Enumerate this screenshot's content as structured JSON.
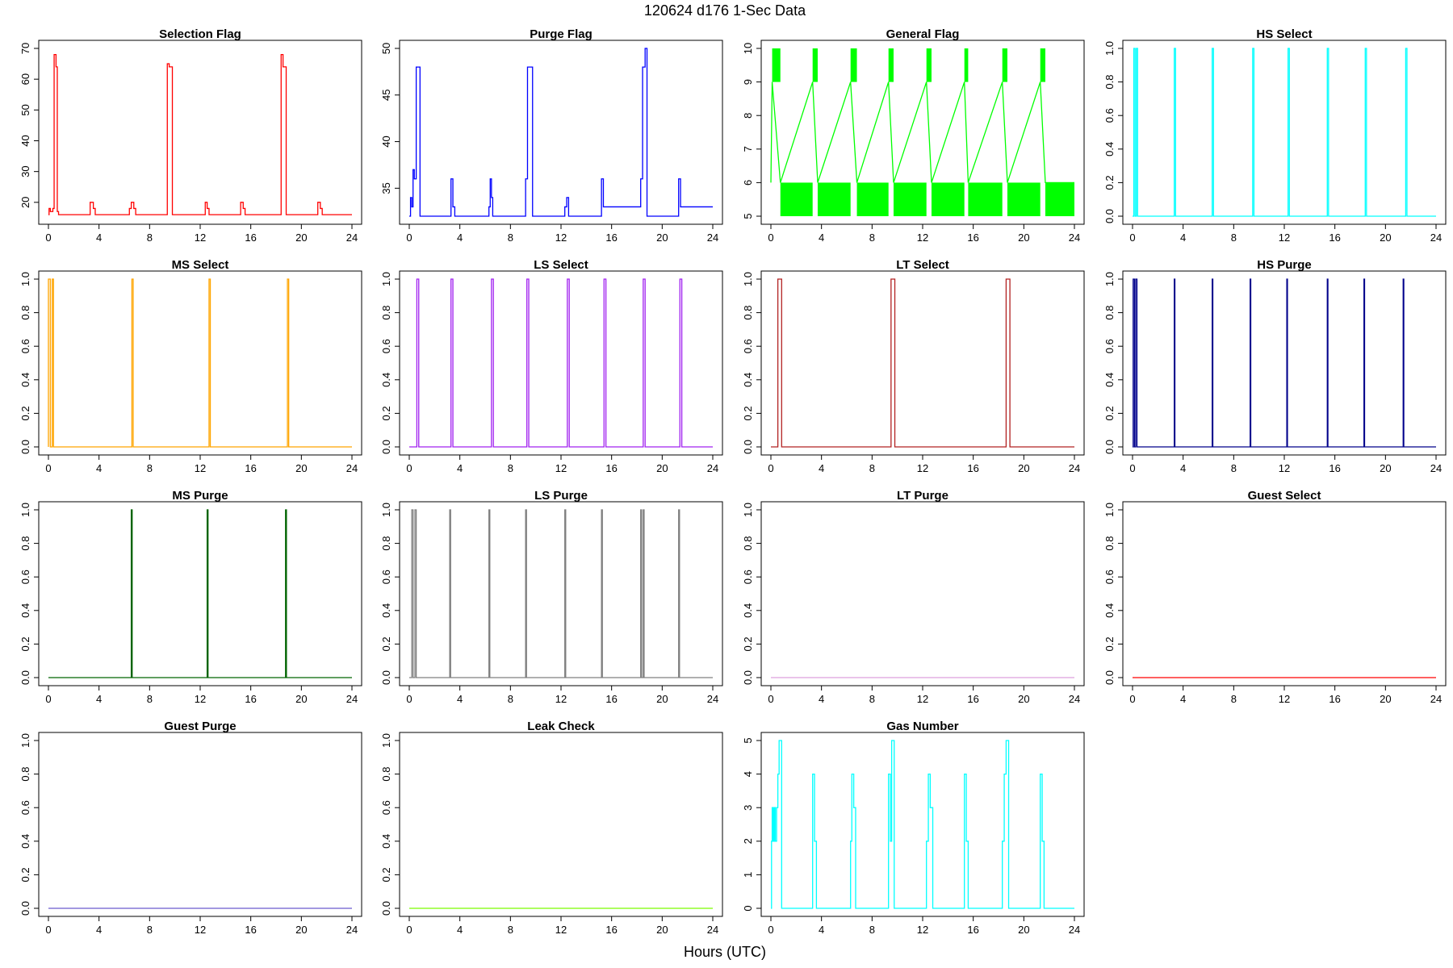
{
  "figure": {
    "title": "120624   d176   1-Sec Data",
    "xlabel": "Hours (UTC)"
  },
  "chart_data": [
    {
      "type": "line",
      "step": true,
      "title": "Selection Flag",
      "color": "#ff0000",
      "xlim": [
        0,
        24
      ],
      "ylim": [
        15.5,
        70
      ],
      "xticks": [
        0,
        4,
        8,
        12,
        16,
        20,
        24
      ],
      "yticks": [
        20,
        30,
        40,
        50,
        60,
        70
      ],
      "x": [
        0,
        0.05,
        0.05,
        0.15,
        0.15,
        0.35,
        0.35,
        0.45,
        0.45,
        0.6,
        0.6,
        0.7,
        0.7,
        0.8,
        0.8,
        3.3,
        3.3,
        3.55,
        3.55,
        3.7,
        3.7,
        6.4,
        6.4,
        6.55,
        6.55,
        6.75,
        6.75,
        6.9,
        6.9,
        9.4,
        9.4,
        9.55,
        9.55,
        9.8,
        9.8,
        12.4,
        12.4,
        12.55,
        12.55,
        12.7,
        12.7,
        15.2,
        15.2,
        15.4,
        15.4,
        15.55,
        15.55,
        18.4,
        18.4,
        18.55,
        18.55,
        18.8,
        18.8,
        21.3,
        21.3,
        21.5,
        21.5,
        21.65,
        21.65,
        24
      ],
      "y": [
        16,
        16,
        18,
        18,
        17,
        17,
        18,
        18,
        68,
        68,
        64,
        64,
        17,
        17,
        16,
        16,
        20,
        20,
        18,
        18,
        16,
        16,
        18,
        18,
        20,
        20,
        18,
        18,
        16,
        16,
        65,
        65,
        64,
        64,
        16,
        16,
        20,
        20,
        18,
        18,
        16,
        16,
        20,
        20,
        18,
        18,
        16,
        16,
        68,
        68,
        64,
        64,
        16,
        16,
        20,
        20,
        18,
        18,
        16,
        16
      ]
    },
    {
      "type": "line",
      "step": true,
      "title": "Purge Flag",
      "color": "#0000ff",
      "xlim": [
        0,
        24
      ],
      "ylim": [
        32,
        50
      ],
      "xticks": [
        0,
        4,
        8,
        12,
        16,
        20,
        24
      ],
      "yticks": [
        35,
        40,
        45,
        50
      ],
      "x": [
        0,
        0.1,
        0.1,
        0.2,
        0.2,
        0.3,
        0.3,
        0.4,
        0.4,
        0.55,
        0.55,
        0.85,
        0.85,
        3.3,
        3.3,
        3.45,
        3.45,
        3.6,
        3.6,
        6.3,
        6.3,
        6.4,
        6.4,
        6.5,
        6.5,
        6.6,
        6.6,
        9.2,
        9.2,
        9.35,
        9.35,
        9.55,
        9.55,
        9.75,
        9.75,
        12.3,
        12.3,
        12.45,
        12.45,
        12.6,
        12.6,
        15.2,
        15.2,
        15.35,
        15.35,
        18.3,
        18.3,
        18.45,
        18.45,
        18.65,
        18.65,
        18.8,
        18.8,
        21.3,
        21.3,
        21.45,
        21.45,
        24
      ],
      "y": [
        32,
        32,
        34,
        34,
        33,
        33,
        37,
        37,
        36,
        36,
        48,
        48,
        32,
        32,
        36,
        36,
        33,
        33,
        32,
        32,
        33,
        33,
        36,
        36,
        34,
        34,
        32,
        32,
        36,
        36,
        48,
        48,
        48,
        48,
        32,
        32,
        33,
        33,
        34,
        34,
        32,
        32,
        36,
        36,
        33,
        33,
        36,
        36,
        48,
        48,
        50,
        50,
        32,
        32,
        36,
        36,
        33,
        33
      ]
    },
    {
      "type": "line",
      "step": true,
      "title": "General Flag",
      "color": "#00ff00",
      "xlim": [
        0,
        24
      ],
      "ylim": [
        5,
        10
      ],
      "xticks": [
        0,
        4,
        8,
        12,
        16,
        20,
        24
      ],
      "yticks": [
        5,
        6,
        7,
        8,
        9,
        10
      ],
      "x": [
        0,
        0,
        0.1,
        0.1,
        0.75,
        0.75,
        3.3,
        3.3,
        3.7,
        3.7,
        6.3,
        6.3,
        6.8,
        6.8,
        9.3,
        9.3,
        9.7,
        9.7,
        12.3,
        12.3,
        12.7,
        12.7,
        15.3,
        15.3,
        15.6,
        15.6,
        18.3,
        18.3,
        18.7,
        18.7,
        21.3,
        21.3,
        21.7,
        21.7,
        24
      ],
      "y": [
        6,
        6,
        9,
        9,
        6,
        6,
        9,
        9,
        6,
        6,
        9,
        9,
        6,
        6,
        9,
        9,
        6,
        6,
        9,
        9,
        6,
        6,
        9,
        9,
        6,
        6,
        9,
        9,
        6,
        6,
        9,
        9,
        6,
        6,
        6
      ],
      "filled_blocks": [
        {
          "x0": 0.1,
          "x1": 0.75,
          "y0": 9,
          "y1": 10
        },
        {
          "x0": 3.3,
          "x1": 3.7,
          "y0": 9,
          "y1": 10
        },
        {
          "x0": 6.3,
          "x1": 6.8,
          "y0": 9,
          "y1": 10
        },
        {
          "x0": 9.3,
          "x1": 9.7,
          "y0": 9,
          "y1": 10
        },
        {
          "x0": 12.3,
          "x1": 12.7,
          "y0": 9,
          "y1": 10
        },
        {
          "x0": 15.3,
          "x1": 15.6,
          "y0": 9,
          "y1": 10
        },
        {
          "x0": 18.3,
          "x1": 18.7,
          "y0": 9,
          "y1": 10
        },
        {
          "x0": 21.3,
          "x1": 21.7,
          "y0": 9,
          "y1": 10
        },
        {
          "x0": 0.75,
          "x1": 3.3,
          "y0": 5,
          "y1": 6
        },
        {
          "x0": 3.7,
          "x1": 6.3,
          "y0": 5,
          "y1": 6
        },
        {
          "x0": 6.8,
          "x1": 9.3,
          "y0": 5,
          "y1": 6
        },
        {
          "x0": 9.7,
          "x1": 12.3,
          "y0": 5,
          "y1": 6
        },
        {
          "x0": 12.7,
          "x1": 15.3,
          "y0": 5,
          "y1": 6
        },
        {
          "x0": 15.6,
          "x1": 18.3,
          "y0": 5,
          "y1": 6
        },
        {
          "x0": 18.7,
          "x1": 21.3,
          "y0": 5,
          "y1": 6
        },
        {
          "x0": 21.7,
          "x1": 24,
          "y0": 5,
          "y1": 6
        }
      ]
    },
    {
      "type": "line",
      "step": true,
      "title": "HS Select",
      "color": "#00ffff",
      "xlim": [
        0,
        24
      ],
      "ylim": [
        0,
        1
      ],
      "xticks": [
        0,
        4,
        8,
        12,
        16,
        20,
        24
      ],
      "yticks": [
        0.0,
        0.2,
        0.4,
        0.6,
        0.8,
        1.0
      ],
      "pulses": [
        [
          0.1,
          0.2
        ],
        [
          0.3,
          0.4
        ],
        [
          3.3,
          3.4
        ],
        [
          6.3,
          6.4
        ],
        [
          9.5,
          9.6
        ],
        [
          12.3,
          12.4
        ],
        [
          15.4,
          15.5
        ],
        [
          18.4,
          18.5
        ],
        [
          21.6,
          21.7
        ]
      ]
    },
    {
      "type": "line",
      "step": true,
      "title": "MS Select",
      "color": "#ffa500",
      "xlim": [
        0,
        24
      ],
      "ylim": [
        0,
        1
      ],
      "xticks": [
        0,
        4,
        8,
        12,
        16,
        20,
        24
      ],
      "yticks": [
        0.0,
        0.2,
        0.4,
        0.6,
        0.8,
        1.0
      ],
      "pulses": [
        [
          0,
          0.15
        ],
        [
          0.3,
          0.4
        ],
        [
          6.6,
          6.7
        ],
        [
          12.7,
          12.8
        ],
        [
          18.9,
          19.0
        ]
      ]
    },
    {
      "type": "line",
      "step": true,
      "title": "LS Select",
      "color": "#a020f0",
      "xlim": [
        0,
        24
      ],
      "ylim": [
        0,
        1
      ],
      "xticks": [
        0,
        4,
        8,
        12,
        16,
        20,
        24
      ],
      "yticks": [
        0.0,
        0.2,
        0.4,
        0.6,
        0.8,
        1.0
      ],
      "pulses": [
        [
          0.6,
          0.75
        ],
        [
          3.3,
          3.45
        ],
        [
          6.5,
          6.65
        ],
        [
          9.3,
          9.45
        ],
        [
          12.5,
          12.65
        ],
        [
          15.4,
          15.55
        ],
        [
          18.5,
          18.65
        ],
        [
          21.4,
          21.55
        ]
      ]
    },
    {
      "type": "line",
      "step": true,
      "title": "LT Select",
      "color": "#b22222",
      "xlim": [
        0,
        24
      ],
      "ylim": [
        0,
        1
      ],
      "xticks": [
        0,
        4,
        8,
        12,
        16,
        20,
        24
      ],
      "yticks": [
        0.0,
        0.2,
        0.4,
        0.6,
        0.8,
        1.0
      ],
      "pulses": [
        [
          0.55,
          0.85
        ],
        [
          9.5,
          9.8
        ],
        [
          18.6,
          18.9
        ]
      ]
    },
    {
      "type": "line",
      "step": true,
      "title": "HS Purge",
      "color": "#00008b",
      "xlim": [
        0,
        24
      ],
      "ylim": [
        0,
        1
      ],
      "xticks": [
        0,
        4,
        8,
        12,
        16,
        20,
        24
      ],
      "yticks": [
        0.0,
        0.2,
        0.4,
        0.6,
        0.8,
        1.0
      ],
      "pulses": [
        [
          0.05,
          0.15
        ],
        [
          0.25,
          0.35
        ],
        [
          3.3,
          3.35
        ],
        [
          6.3,
          6.35
        ],
        [
          9.3,
          9.35
        ],
        [
          12.2,
          12.25
        ],
        [
          15.4,
          15.45
        ],
        [
          18.3,
          18.35
        ],
        [
          21.4,
          21.45
        ]
      ]
    },
    {
      "type": "line",
      "step": true,
      "title": "MS Purge",
      "color": "#006400",
      "xlim": [
        0,
        24
      ],
      "ylim": [
        0,
        1
      ],
      "xticks": [
        0,
        4,
        8,
        12,
        16,
        20,
        24
      ],
      "yticks": [
        0.0,
        0.2,
        0.4,
        0.6,
        0.8,
        1.0
      ],
      "pulses": [
        [
          6.55,
          6.62
        ],
        [
          12.55,
          12.62
        ],
        [
          18.75,
          18.82
        ]
      ]
    },
    {
      "type": "line",
      "step": true,
      "title": "LS Purge",
      "color": "#808080",
      "xlim": [
        0,
        24
      ],
      "ylim": [
        0,
        1
      ],
      "xticks": [
        0,
        4,
        8,
        12,
        16,
        20,
        24
      ],
      "yticks": [
        0.0,
        0.2,
        0.4,
        0.6,
        0.8,
        1.0
      ],
      "pulses": [
        [
          0.2,
          0.3
        ],
        [
          0.45,
          0.55
        ],
        [
          3.2,
          3.27
        ],
        [
          6.3,
          6.37
        ],
        [
          9.2,
          9.27
        ],
        [
          12.3,
          12.37
        ],
        [
          15.2,
          15.27
        ],
        [
          18.3,
          18.37
        ],
        [
          18.5,
          18.57
        ],
        [
          21.3,
          21.37
        ]
      ]
    },
    {
      "type": "line",
      "step": true,
      "title": "LT Purge",
      "color": "#dda0dd",
      "xlim": [
        0,
        24
      ],
      "ylim": [
        0,
        1
      ],
      "xticks": [
        0,
        4,
        8,
        12,
        16,
        20,
        24
      ],
      "yticks": [
        0.0,
        0.2,
        0.4,
        0.6,
        0.8,
        1.0
      ],
      "pulses": []
    },
    {
      "type": "line",
      "step": true,
      "title": "Guest Select",
      "color": "#ff0000",
      "xlim": [
        0,
        24
      ],
      "ylim": [
        0,
        1
      ],
      "xticks": [
        0,
        4,
        8,
        12,
        16,
        20,
        24
      ],
      "yticks": [
        0.0,
        0.2,
        0.4,
        0.6,
        0.8,
        1.0
      ],
      "pulses": []
    },
    {
      "type": "line",
      "step": true,
      "title": "Guest Purge",
      "color": "#6a5acd",
      "xlim": [
        0,
        24
      ],
      "ylim": [
        0,
        1
      ],
      "xticks": [
        0,
        4,
        8,
        12,
        16,
        20,
        24
      ],
      "yticks": [
        0.0,
        0.2,
        0.4,
        0.6,
        0.8,
        1.0
      ],
      "pulses": []
    },
    {
      "type": "line",
      "step": true,
      "title": "Leak Check",
      "color": "#7cfc00",
      "xlim": [
        0,
        24
      ],
      "ylim": [
        0,
        1
      ],
      "xticks": [
        0,
        4,
        8,
        12,
        16,
        20,
        24
      ],
      "yticks": [
        0.0,
        0.2,
        0.4,
        0.6,
        0.8,
        1.0
      ],
      "pulses": []
    },
    {
      "type": "line",
      "step": true,
      "title": "Gas Number",
      "color": "#00ffff",
      "xlim": [
        0,
        24
      ],
      "ylim": [
        0,
        5
      ],
      "xticks": [
        0,
        4,
        8,
        12,
        16,
        20,
        24
      ],
      "yticks": [
        0,
        1,
        2,
        3,
        4,
        5
      ],
      "x": [
        0,
        0,
        0.05,
        0.05,
        0.1,
        0.1,
        0.15,
        0.15,
        0.2,
        0.2,
        0.25,
        0.25,
        0.3,
        0.3,
        0.35,
        0.35,
        0.45,
        0.45,
        0.55,
        0.55,
        0.65,
        0.65,
        0.85,
        0.85,
        3.3,
        3.3,
        3.45,
        3.45,
        3.6,
        3.6,
        6.3,
        6.3,
        6.4,
        6.4,
        6.55,
        6.55,
        6.7,
        6.7,
        6.9,
        6.9,
        9.3,
        9.3,
        9.45,
        9.45,
        9.55,
        9.55,
        9.75,
        9.75,
        12.3,
        12.3,
        12.45,
        12.45,
        12.6,
        12.6,
        12.8,
        12.8,
        15.3,
        15.3,
        15.45,
        15.45,
        15.6,
        15.6,
        18.3,
        18.3,
        18.45,
        18.45,
        18.6,
        18.6,
        18.8,
        18.8,
        21.3,
        21.3,
        21.45,
        21.45,
        21.6,
        21.6,
        24
      ],
      "y": [
        0,
        0,
        0,
        2,
        2,
        3,
        3,
        2,
        2,
        3,
        3,
        2,
        2,
        3,
        3,
        2,
        2,
        3,
        3,
        4,
        4,
        5,
        5,
        0,
        0,
        4,
        4,
        2,
        2,
        0,
        0,
        2,
        2,
        4,
        4,
        3,
        3,
        0,
        0,
        0,
        0,
        4,
        4,
        2,
        2,
        5,
        5,
        0,
        0,
        2,
        2,
        4,
        4,
        3,
        3,
        0,
        0,
        4,
        4,
        2,
        2,
        0,
        0,
        2,
        2,
        4,
        4,
        5,
        5,
        0,
        0,
        4,
        4,
        2,
        2,
        0,
        0
      ]
    }
  ]
}
